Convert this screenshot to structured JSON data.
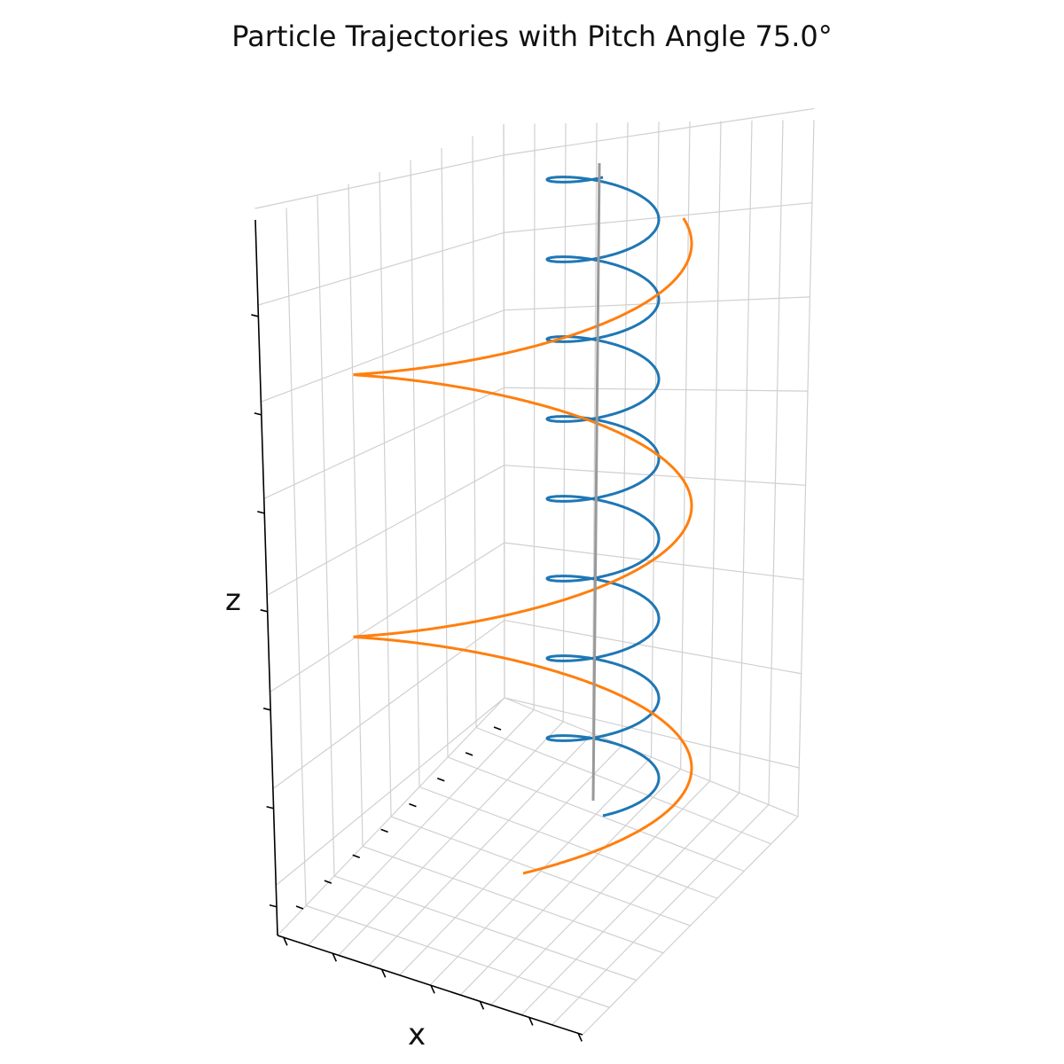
{
  "chart_data": {
    "type": "line",
    "title": "Particle Trajectories with Pitch Angle 75.0°",
    "xlabel": "x",
    "ylabel": "",
    "zlabel": "z",
    "projection": "3d",
    "grid": true,
    "legend": "none",
    "colors": {
      "series_1": "#1f77b4",
      "series_2": "#ff7f0e",
      "field_line": "#999999",
      "grid": "#d0d0d0",
      "axis": "#000000"
    },
    "series": [
      {
        "type": "helix",
        "turns": 8.0,
        "radius_scale": 1.0,
        "color": "#1f77b4"
      },
      {
        "type": "helix",
        "turns": 2.3,
        "radius_scale": 3.6,
        "color": "#ff7f0e"
      },
      {
        "type": "field_line",
        "color": "#999999"
      }
    ]
  }
}
